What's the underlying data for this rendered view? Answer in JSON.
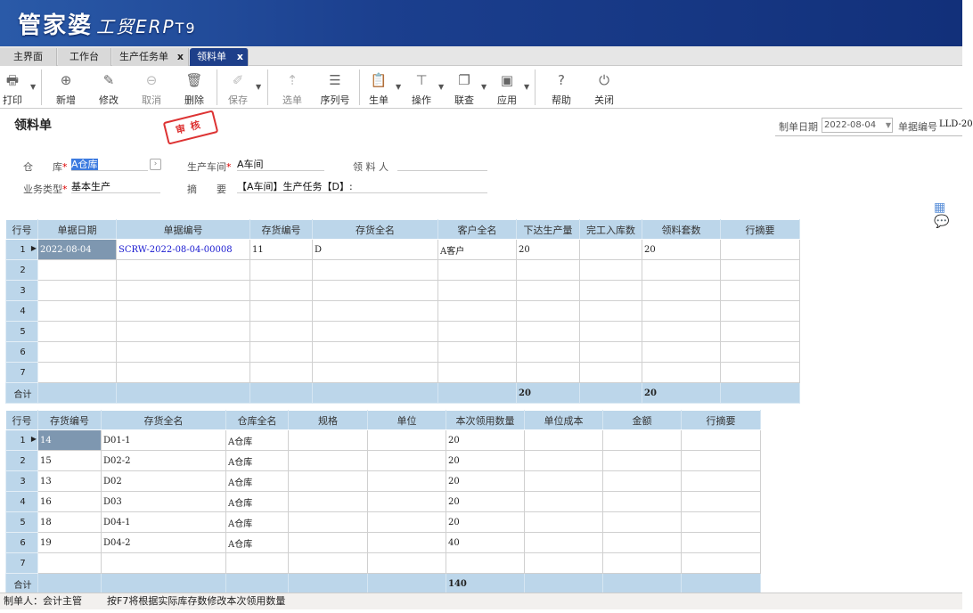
{
  "app": {
    "logo_main": "管家婆",
    "logo_sub": "工贸ERP",
    "logo_ver": "T9"
  },
  "tabs": [
    {
      "label": "主界面"
    },
    {
      "label": "工作台"
    },
    {
      "label": "生产任务单",
      "close": "x"
    },
    {
      "label": "领料单",
      "close": "x",
      "active": true
    }
  ],
  "toolbar": {
    "print": "打印",
    "add": "新增",
    "edit": "修改",
    "cancel": "取消",
    "delete": "删除",
    "save": "保存",
    "select": "选单",
    "serial": "序列号",
    "generate": "生单",
    "operate": "操作",
    "query": "联查",
    "apply": "应用",
    "help": "帮助",
    "close": "关闭"
  },
  "form": {
    "title": "领料单",
    "stamp": "审核",
    "warehouse_label": "仓　　库",
    "warehouse_value": "A仓库",
    "workshop_label": "生产车间",
    "workshop_value": "A车间",
    "picker_label": "领 料 人",
    "picker_value": "",
    "biztype_label": "业务类型",
    "biztype_value": "基本生产",
    "summary_label": "摘　　要",
    "summary_value": "【A车间】生产任务【D】:",
    "date_label": "制单日期",
    "date_value": "2022-08-04",
    "billno_label": "单据编号",
    "billno_value": "LLD-20"
  },
  "table1": {
    "headers": [
      "行号",
      "单据日期",
      "单据编号",
      "存货编号",
      "存货全名",
      "客户全名",
      "下达生产量",
      "完工入库数",
      "领料套数",
      "行摘要"
    ],
    "rows": [
      [
        "1",
        "2022-08-04",
        "SCRW-2022-08-04-00008",
        "11",
        "D",
        "A客户",
        "20",
        "",
        "20",
        ""
      ],
      [
        "2",
        "",
        "",
        "",
        "",
        "",
        "",
        "",
        "",
        ""
      ],
      [
        "3",
        "",
        "",
        "",
        "",
        "",
        "",
        "",
        "",
        ""
      ],
      [
        "4",
        "",
        "",
        "",
        "",
        "",
        "",
        "",
        "",
        ""
      ],
      [
        "5",
        "",
        "",
        "",
        "",
        "",
        "",
        "",
        "",
        ""
      ],
      [
        "6",
        "",
        "",
        "",
        "",
        "",
        "",
        "",
        "",
        ""
      ],
      [
        "7",
        "",
        "",
        "",
        "",
        "",
        "",
        "",
        "",
        ""
      ]
    ],
    "total": [
      "合计",
      "",
      "",
      "",
      "",
      "",
      "20",
      "",
      "20",
      ""
    ]
  },
  "table2": {
    "headers": [
      "行号",
      "存货编号",
      "存货全名",
      "仓库全名",
      "规格",
      "单位",
      "本次领用数量",
      "单位成本",
      "金额",
      "行摘要"
    ],
    "rows": [
      [
        "1",
        "14",
        "D01-1",
        "A仓库",
        "",
        "",
        "20",
        "",
        "",
        ""
      ],
      [
        "2",
        "15",
        "D02-2",
        "A仓库",
        "",
        "",
        "20",
        "",
        "",
        ""
      ],
      [
        "3",
        "13",
        "D02",
        "A仓库",
        "",
        "",
        "20",
        "",
        "",
        ""
      ],
      [
        "4",
        "16",
        "D03",
        "A仓库",
        "",
        "",
        "20",
        "",
        "",
        ""
      ],
      [
        "5",
        "18",
        "D04-1",
        "A仓库",
        "",
        "",
        "20",
        "",
        "",
        ""
      ],
      [
        "6",
        "19",
        "D04-2",
        "A仓库",
        "",
        "",
        "40",
        "",
        "",
        ""
      ],
      [
        "7",
        "",
        "",
        "",
        "",
        "",
        "",
        "",
        "",
        ""
      ]
    ],
    "total": [
      "合计",
      "",
      "",
      "",
      "",
      "",
      "140",
      "",
      "",
      ""
    ]
  },
  "status": {
    "maker": "制单人：会计主管",
    "hint": "按F7将根据实际库存数修改本次领用数量"
  },
  "colors": {
    "banner": "#1b3f8e",
    "grid_header": "#bcd6ea",
    "active_tab": "#1e3f8a",
    "stamp": "#dd3333"
  }
}
